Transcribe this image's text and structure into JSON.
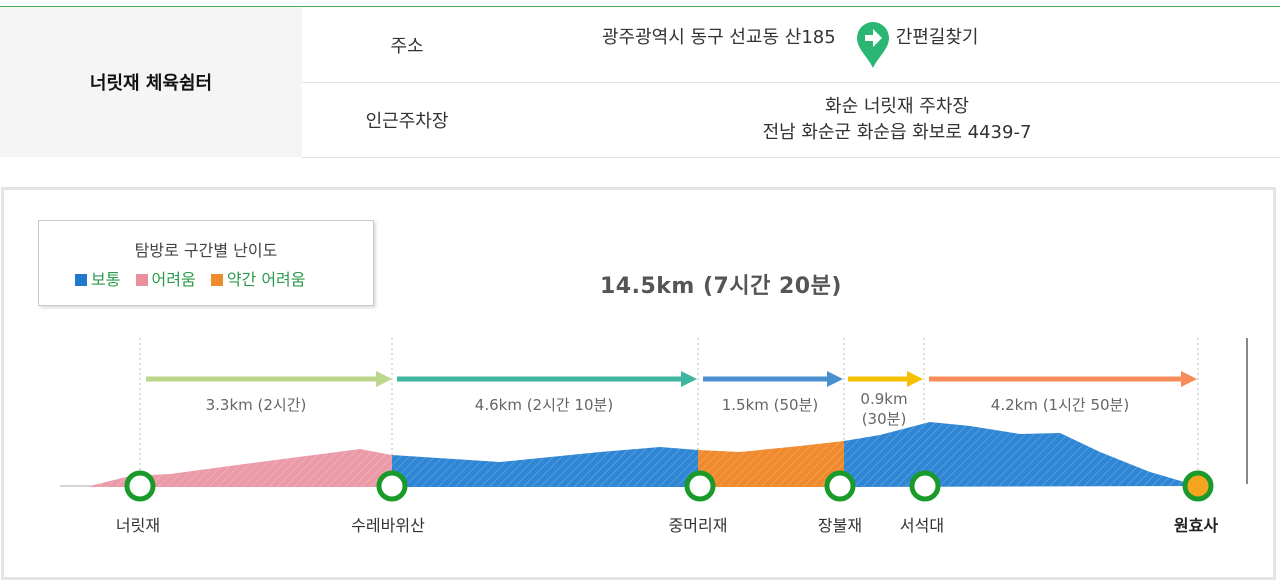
{
  "facility": {
    "name": "너릿재 체육쉼터",
    "address_label": "주소",
    "address_value": "광주광역시 동구 선교동 산185",
    "route_link": "간편길찾기",
    "parking_label": "인근주차장",
    "parking_line1": "화순 너릿재 주차장",
    "parking_line2": "전남 화순군 화순읍 화보로 4439-7"
  },
  "legend": {
    "title": "탐방로 구간별 난이도",
    "items": [
      {
        "label": "보통",
        "color": "#1f78c8"
      },
      {
        "label": "어려움",
        "color": "#ea8f9d"
      },
      {
        "label": "약간 어려움",
        "color": "#f08a2e"
      }
    ]
  },
  "trail": {
    "total": "14.5km (7시간 20분)",
    "segments": [
      {
        "label": "3.3km (2시간)",
        "color": "#bcd68b"
      },
      {
        "label": "4.6km (2시간 10분)",
        "color": "#3fb6a0"
      },
      {
        "label": "1.5km (50분)",
        "color": "#4a8fd0"
      },
      {
        "label_line1": "0.9km",
        "label_line2": "(30분)",
        "color": "#f5c000"
      },
      {
        "label": "4.2km (1시간 50분)",
        "color": "#f58c5a"
      }
    ],
    "stops": [
      "너릿재",
      "수레바위산",
      "중머리재",
      "장불재",
      "서석대",
      "원효사"
    ],
    "colors": {
      "normal": "#2f86d4",
      "hard": "#eb9ba8",
      "moderate": "#f08a2e",
      "node_ring": "#1a9a2a",
      "final_node": "#f3a51e"
    }
  }
}
